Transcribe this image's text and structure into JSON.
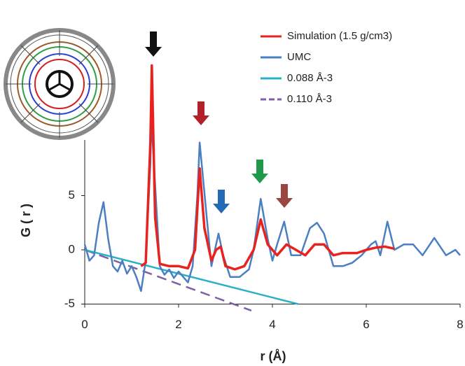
{
  "chart_data": {
    "type": "line",
    "x_label": "r (Å)",
    "y_label": "G ( r )",
    "xlim": [
      0,
      8
    ],
    "xticks": [
      0,
      2,
      4,
      6,
      8
    ],
    "ylim": [
      -5,
      20
    ],
    "yticks": [
      -5,
      0,
      5
    ],
    "legend": "top-right",
    "series": [
      {
        "name": "Simulation (1.5 g/cm3)",
        "color": "#e8231f",
        "width": 3.5,
        "x": [
          1.2,
          1.3,
          1.4,
          1.43,
          1.5,
          1.6,
          1.8,
          2.0,
          2.2,
          2.35,
          2.45,
          2.55,
          2.7,
          2.8,
          2.9,
          3.0,
          3.2,
          3.4,
          3.6,
          3.75,
          3.9,
          4.1,
          4.3,
          4.5,
          4.7,
          4.9,
          5.1,
          5.3,
          5.5,
          5.8,
          6.0,
          6.2,
          6.4,
          6.6
        ],
        "values": [
          -1.5,
          -1.2,
          10,
          17,
          3,
          -1.3,
          -1.5,
          -1.5,
          -1.7,
          0,
          7.5,
          2,
          -1,
          0,
          0.3,
          -1.5,
          -1.8,
          -1.5,
          0,
          2.8,
          0.5,
          -0.5,
          0.5,
          0,
          -0.5,
          0.5,
          0.5,
          -0.5,
          -0.3,
          -0.3,
          0,
          0.2,
          0.3,
          0.1
        ]
      },
      {
        "name": "UMC",
        "color": "#4a7fc1",
        "width": 2.5,
        "x": [
          0,
          0.1,
          0.2,
          0.3,
          0.4,
          0.5,
          0.6,
          0.7,
          0.8,
          0.9,
          1.0,
          1.1,
          1.2,
          1.3,
          1.4,
          1.42,
          1.5,
          1.6,
          1.7,
          1.8,
          1.9,
          2.0,
          2.1,
          2.2,
          2.3,
          2.4,
          2.45,
          2.6,
          2.7,
          2.8,
          2.85,
          2.95,
          3.1,
          3.3,
          3.5,
          3.6,
          3.75,
          3.9,
          4.0,
          4.1,
          4.25,
          4.4,
          4.6,
          4.8,
          4.95,
          5.1,
          5.3,
          5.5,
          5.7,
          5.9,
          6.1,
          6.2,
          6.3,
          6.45,
          6.6,
          6.8,
          7.0,
          7.2,
          7.45,
          7.7,
          7.9,
          8.0
        ],
        "values": [
          0.5,
          -1,
          -0.5,
          2.5,
          4.4,
          1,
          -1.5,
          -2,
          -1,
          -2.2,
          -1.5,
          -2.5,
          -3.8,
          -1,
          8,
          12.1,
          6,
          -1.5,
          -2.3,
          -1.8,
          -2.6,
          -2,
          -2.5,
          -3,
          -1.5,
          5,
          9.9,
          3,
          -1.5,
          0.5,
          1.5,
          -0.5,
          -2.5,
          -2.5,
          -1.8,
          0,
          4.7,
          1,
          -1,
          0.5,
          2.6,
          -0.5,
          -0.5,
          2,
          2.5,
          1.5,
          -1.5,
          -1.5,
          -1.2,
          -0.5,
          0.5,
          0.8,
          -0.5,
          2.6,
          0,
          0.5,
          0.5,
          -0.5,
          1.1,
          -0.5,
          0,
          -0.5
        ]
      },
      {
        "name": "0.088 Å-3",
        "color": "#2ab0c8",
        "width": 2.5,
        "x": [
          0,
          4.55
        ],
        "values": [
          0,
          -5
        ]
      },
      {
        "name": "0.110 Å-3",
        "color": "#7f5fa8",
        "width": 2.5,
        "dashed": true,
        "x": [
          0,
          3.55
        ],
        "values": [
          0,
          -5.6
        ]
      }
    ]
  }
}
